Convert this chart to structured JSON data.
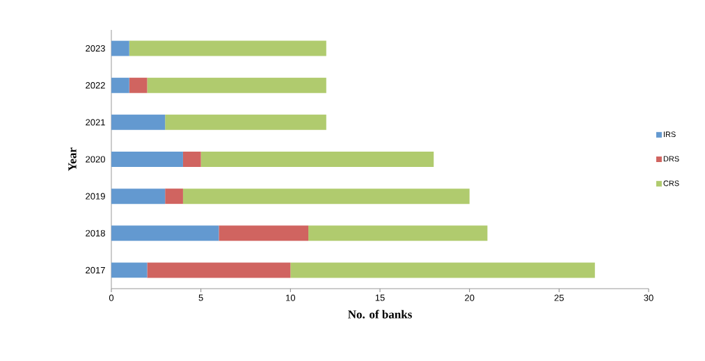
{
  "chart_data": {
    "type": "bar",
    "orientation": "horizontal",
    "stacked": true,
    "xlabel": "No. of banks",
    "ylabel": "Year",
    "categories": [
      "2023",
      "2022",
      "2021",
      "2020",
      "2019",
      "2018",
      "2017"
    ],
    "series": [
      {
        "name": "IRS",
        "color": "#6399d0",
        "values": [
          1,
          1,
          3,
          4,
          3,
          6,
          2
        ]
      },
      {
        "name": "DRS",
        "color": "#d06460",
        "values": [
          0,
          1,
          0,
          1,
          1,
          5,
          8
        ]
      },
      {
        "name": "CRS",
        "color": "#b0cb6e",
        "values": [
          11,
          10,
          9,
          13,
          16,
          10,
          17
        ]
      }
    ],
    "xlim": [
      0,
      30
    ],
    "xticks": [
      0,
      5,
      10,
      15,
      20,
      25,
      30
    ],
    "grid": false,
    "legend": "right"
  }
}
